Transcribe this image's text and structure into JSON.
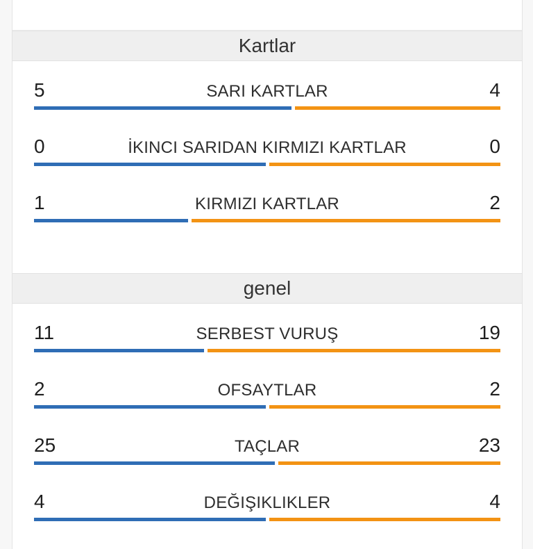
{
  "colors": {
    "home": "#2f6db5",
    "away": "#f39314"
  },
  "sections": [
    {
      "title": "Kartlar",
      "stats": [
        {
          "label": "SARI KARTLAR",
          "home": 5,
          "away": 4
        },
        {
          "label": "İKINCI SARIDAN KIRMIZI KARTLAR",
          "home": 0,
          "away": 0
        },
        {
          "label": "KIRMIZI KARTLAR",
          "home": 1,
          "away": 2
        }
      ]
    },
    {
      "title": "genel",
      "stats": [
        {
          "label": "SERBEST VURUŞ",
          "home": 11,
          "away": 19
        },
        {
          "label": "OFSAYTLAR",
          "home": 2,
          "away": 2
        },
        {
          "label": "TAÇLAR",
          "home": 25,
          "away": 23
        },
        {
          "label": "DEĞIŞIKLIKLER",
          "home": 4,
          "away": 4
        }
      ]
    }
  ]
}
